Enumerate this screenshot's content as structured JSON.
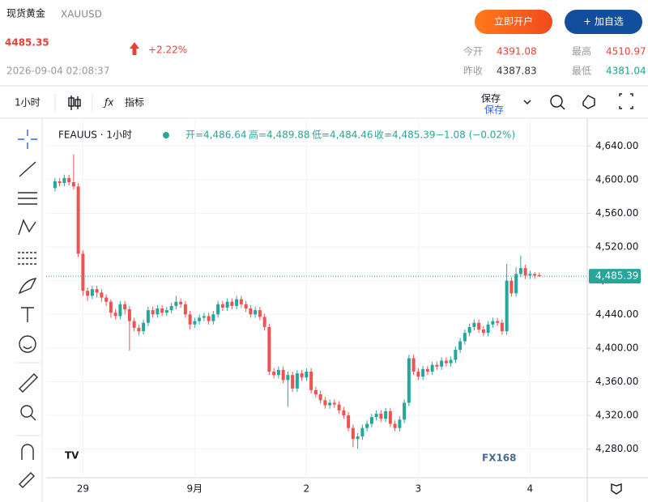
{
  "header": {
    "title": "现货黄金",
    "symbol": "XAUUSD",
    "price": "4485.35",
    "change": "+2.22%",
    "time": "2026-09-04 02:08:37",
    "open_account": "立即开户",
    "watchlist": "+ 加自选"
  },
  "stats": [
    {
      "label": "今开",
      "value": "4391.08"
    },
    {
      "label": "最高",
      "value": "4510.97"
    },
    {
      "label": "昨收",
      "value": "4387.83"
    },
    {
      "label": "最低",
      "value": "4381.04"
    }
  ],
  "toolbar": {
    "interval": "1小时",
    "indicators": "指标",
    "save": "保存",
    "save_sub": "保存"
  },
  "watermark": "FX168",
  "chart_data": {
    "type": "candlestick",
    "legend": {
      "symbol": "FEAUUS · 1小时",
      "open": "开=4,486.64",
      "high": "高=4,489.88",
      "low": "低=4,484.46",
      "close": "收=4,485.39",
      "change": "−1.08 (−0.02%)"
    },
    "categories": [
      null,
      null,
      null,
      null,
      null,
      null,
      "29",
      null,
      null,
      null,
      null,
      null,
      null,
      null,
      null,
      null,
      null,
      null,
      null,
      null,
      null,
      null,
      null,
      null,
      null,
      null,
      null,
      null,
      null,
      null,
      "9月",
      null,
      null,
      null,
      null,
      null,
      null,
      null,
      null,
      null,
      null,
      null,
      null,
      null,
      null,
      null,
      null,
      null,
      null,
      null,
      null,
      null,
      null,
      null,
      "2",
      null,
      null,
      null,
      null,
      null,
      null,
      null,
      null,
      null,
      null,
      null,
      null,
      null,
      null,
      null,
      null,
      null,
      null,
      null,
      null,
      null,
      null,
      null,
      "3",
      null,
      null,
      null,
      null,
      null,
      null,
      null,
      null,
      null,
      null,
      null,
      null,
      null,
      null,
      null,
      null,
      null,
      null,
      null,
      null,
      null,
      null,
      null,
      "4",
      null,
      null
    ],
    "open": [
      4590,
      4598,
      4596,
      4602,
      4597,
      4592,
      4512,
      4468,
      4462,
      4470,
      4466,
      4460,
      4455,
      4442,
      4438,
      4452,
      4446,
      4432,
      4424,
      4420,
      4430,
      4445,
      4440,
      4447,
      4442,
      4445,
      4450,
      4455,
      4452,
      4440,
      4428,
      4432,
      4436,
      4438,
      4432,
      4440,
      4452,
      4448,
      4455,
      4450,
      4458,
      4452,
      4447,
      4440,
      4445,
      4437,
      4425,
      4372,
      4368,
      4374,
      4362,
      4368,
      4352,
      4370,
      4365,
      4372,
      4350,
      4345,
      4338,
      4332,
      4335,
      4333,
      4326,
      4320,
      4305,
      4292,
      4295,
      4305,
      4310,
      4318,
      4322,
      4316,
      4325,
      4310,
      4305,
      4315,
      4335,
      4388,
      4372,
      4366,
      4375,
      4372,
      4380,
      4378,
      4385,
      4382,
      4386,
      4398,
      4408,
      4418,
      4425,
      4430,
      4422,
      4418,
      4428,
      4432,
      4430,
      4420,
      4480,
      4465,
      4488,
      4495,
      4486,
      4488,
      4486.64
    ],
    "high": [
      4602,
      4602,
      4606,
      4606,
      4630,
      4596,
      4516,
      4472,
      4474,
      4474,
      4470,
      4464,
      4458,
      4446,
      4456,
      4456,
      4450,
      4436,
      4428,
      4434,
      4449,
      4449,
      4451,
      4451,
      4449,
      4454,
      4462,
      4459,
      4456,
      4444,
      4436,
      4440,
      4442,
      4442,
      4444,
      4456,
      4456,
      4459,
      4459,
      4462,
      4462,
      4456,
      4451,
      4449,
      4449,
      4441,
      4429,
      4376,
      4378,
      4378,
      4372,
      4372,
      4374,
      4374,
      4376,
      4376,
      4354,
      4349,
      4342,
      4339,
      4339,
      4337,
      4330,
      4324,
      4309,
      4299,
      4309,
      4314,
      4322,
      4326,
      4326,
      4329,
      4329,
      4314,
      4319,
      4339,
      4392,
      4392,
      4376,
      4379,
      4379,
      4384,
      4384,
      4389,
      4389,
      4390,
      4402,
      4412,
      4422,
      4429,
      4434,
      4434,
      4426,
      4432,
      4436,
      4436,
      4434,
      4500,
      4484,
      4496,
      4510,
      4499,
      4492,
      4490,
      4489.88
    ],
    "low": [
      4586,
      4592,
      4592,
      4593,
      4588,
      4508,
      4462,
      4456,
      4458,
      4460,
      4455,
      4450,
      4436,
      4434,
      4434,
      4440,
      4397,
      4420,
      4415,
      4416,
      4426,
      4436,
      4436,
      4438,
      4438,
      4441,
      4446,
      4448,
      4436,
      4422,
      4424,
      4428,
      4432,
      4428,
      4428,
      4436,
      4444,
      4444,
      4446,
      4446,
      4448,
      4443,
      4436,
      4436,
      4433,
      4421,
      4368,
      4364,
      4364,
      4358,
      4330,
      4348,
      4348,
      4361,
      4361,
      4346,
      4341,
      4334,
      4328,
      4328,
      4329,
      4322,
      4316,
      4301,
      4282,
      4280,
      4291,
      4301,
      4306,
      4314,
      4312,
      4312,
      4306,
      4301,
      4301,
      4311,
      4331,
      4368,
      4362,
      4362,
      4368,
      4368,
      4374,
      4374,
      4378,
      4378,
      4382,
      4394,
      4404,
      4414,
      4421,
      4418,
      4414,
      4414,
      4424,
      4426,
      4416,
      4416,
      4461,
      4461,
      4484,
      4482,
      4482,
      4482,
      4484.46
    ],
    "close": [
      4598,
      4596,
      4602,
      4597,
      4592,
      4512,
      4468,
      4462,
      4470,
      4466,
      4460,
      4455,
      4442,
      4438,
      4452,
      4446,
      4432,
      4424,
      4420,
      4430,
      4445,
      4440,
      4447,
      4442,
      4445,
      4450,
      4455,
      4452,
      4440,
      4428,
      4432,
      4436,
      4438,
      4432,
      4440,
      4452,
      4448,
      4455,
      4450,
      4458,
      4452,
      4447,
      4440,
      4445,
      4437,
      4425,
      4372,
      4368,
      4374,
      4362,
      4368,
      4352,
      4370,
      4365,
      4372,
      4350,
      4345,
      4338,
      4332,
      4335,
      4333,
      4326,
      4320,
      4305,
      4292,
      4295,
      4305,
      4310,
      4318,
      4322,
      4316,
      4325,
      4310,
      4305,
      4315,
      4335,
      4388,
      4372,
      4366,
      4375,
      4372,
      4380,
      4378,
      4385,
      4382,
      4386,
      4398,
      4408,
      4418,
      4425,
      4430,
      4422,
      4418,
      4428,
      4432,
      4430,
      4420,
      4480,
      4465,
      4488,
      4495,
      4486,
      4488,
      4486,
      4485.39
    ],
    "up_color": "#26a69a",
    "down_color": "#ef5350",
    "ylim": [
      4246,
      4673
    ],
    "yticks": [
      {
        "value": 4280,
        "label": "4,280.00"
      },
      {
        "value": 4320,
        "label": "4,320.00"
      },
      {
        "value": 4360,
        "label": "4,360.00"
      },
      {
        "value": 4400,
        "label": "4,400.00"
      },
      {
        "value": 4440,
        "label": "4,440.00"
      },
      {
        "value": 4480,
        "label": "4,480.00"
      },
      {
        "value": 4520,
        "label": "4,520.00"
      },
      {
        "value": 4560,
        "label": "4,560.00"
      },
      {
        "value": 4600,
        "label": "4,600.00"
      },
      {
        "value": 4640,
        "label": "4,640.00"
      }
    ],
    "last_price": {
      "value": 4485.39,
      "label": "4,485.39"
    },
    "grid": true
  }
}
